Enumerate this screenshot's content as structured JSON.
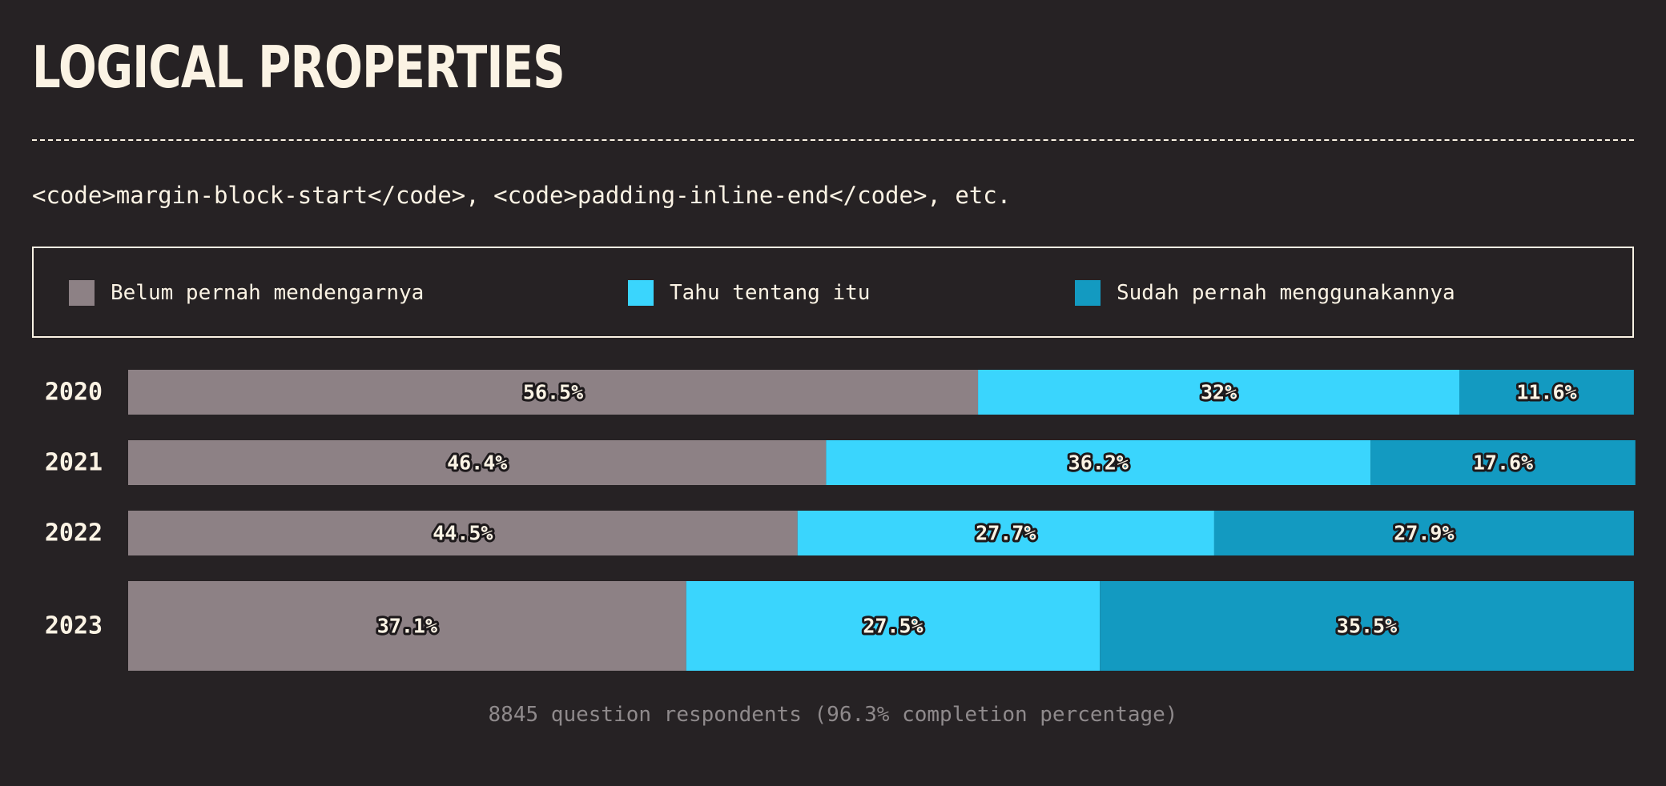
{
  "header": {
    "title": "LOGICAL PROPERTIES",
    "subtitle": "<code>margin-block-start</code>, <code>padding-inline-end</code>, etc."
  },
  "legend": [
    {
      "label": "Belum pernah mendengarnya",
      "color": "#8d8185"
    },
    {
      "label": "Tahu tentang itu",
      "color": "#3ad5fd"
    },
    {
      "label": "Sudah pernah menggunakannya",
      "color": "#139ac1"
    }
  ],
  "chart_data": {
    "type": "bar",
    "orientation": "horizontal",
    "stacked": true,
    "categories": [
      "2020",
      "2021",
      "2022",
      "2023"
    ],
    "series": [
      {
        "name": "Belum pernah mendengarnya",
        "color": "#8d8185",
        "values": [
          56.5,
          46.4,
          44.5,
          37.1
        ],
        "labels": [
          "56.5%",
          "46.4%",
          "44.5%",
          "37.1%"
        ]
      },
      {
        "name": "Tahu tentang itu",
        "color": "#3ad5fd",
        "values": [
          32,
          36.2,
          27.7,
          27.5
        ],
        "labels": [
          "32%",
          "36.2%",
          "27.7%",
          "27.5%"
        ]
      },
      {
        "name": "Sudah pernah menggunakannya",
        "color": "#139ac1",
        "values": [
          11.6,
          17.6,
          27.9,
          35.5
        ],
        "labels": [
          "11.6%",
          "17.6%",
          "27.9%",
          "35.5%"
        ]
      }
    ],
    "xlim": [
      0,
      100
    ],
    "unit": "%",
    "highlight_category": "2023",
    "grid": false,
    "legend_position": "top"
  },
  "footer": {
    "note": "8845 question respondents (96.3% completion percentage)"
  }
}
